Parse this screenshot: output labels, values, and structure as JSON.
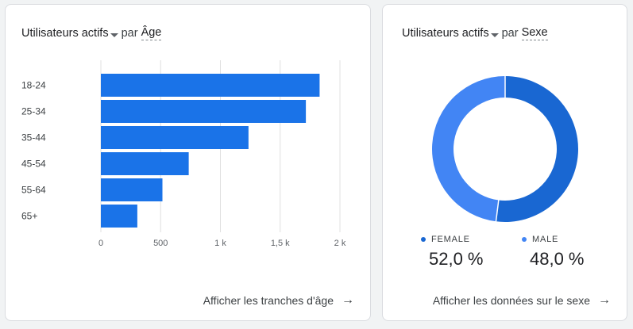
{
  "age_card": {
    "metric_label": "Utilisateurs actifs",
    "par": "par",
    "dimension_label": "Âge",
    "link_label": "Afficher les tranches d'âge",
    "chart_data": {
      "type": "bar",
      "orientation": "horizontal",
      "categories": [
        "18-24",
        "25-34",
        "35-44",
        "45-54",
        "55-64",
        "65+"
      ],
      "values": [
        1830,
        1715,
        1235,
        735,
        515,
        305
      ],
      "xlim": [
        0,
        2000
      ],
      "xticks": [
        0,
        500,
        1000,
        1500,
        2000
      ],
      "xtick_labels": [
        "0",
        "500",
        "1 k",
        "1,5 k",
        "2 k"
      ],
      "grid": true,
      "color": "#1a73e8"
    }
  },
  "sex_card": {
    "metric_label": "Utilisateurs actifs",
    "par": "par",
    "dimension_label": "Sexe",
    "link_label": "Afficher les données sur le sexe",
    "chart_data": {
      "type": "pie",
      "donut": true,
      "slices": [
        {
          "name": "FEMALE",
          "value": 52.0,
          "label": "52,0 %",
          "color": "#1967d2"
        },
        {
          "name": "MALE",
          "value": 48.0,
          "label": "48,0 %",
          "color": "#4285f4"
        }
      ]
    }
  }
}
